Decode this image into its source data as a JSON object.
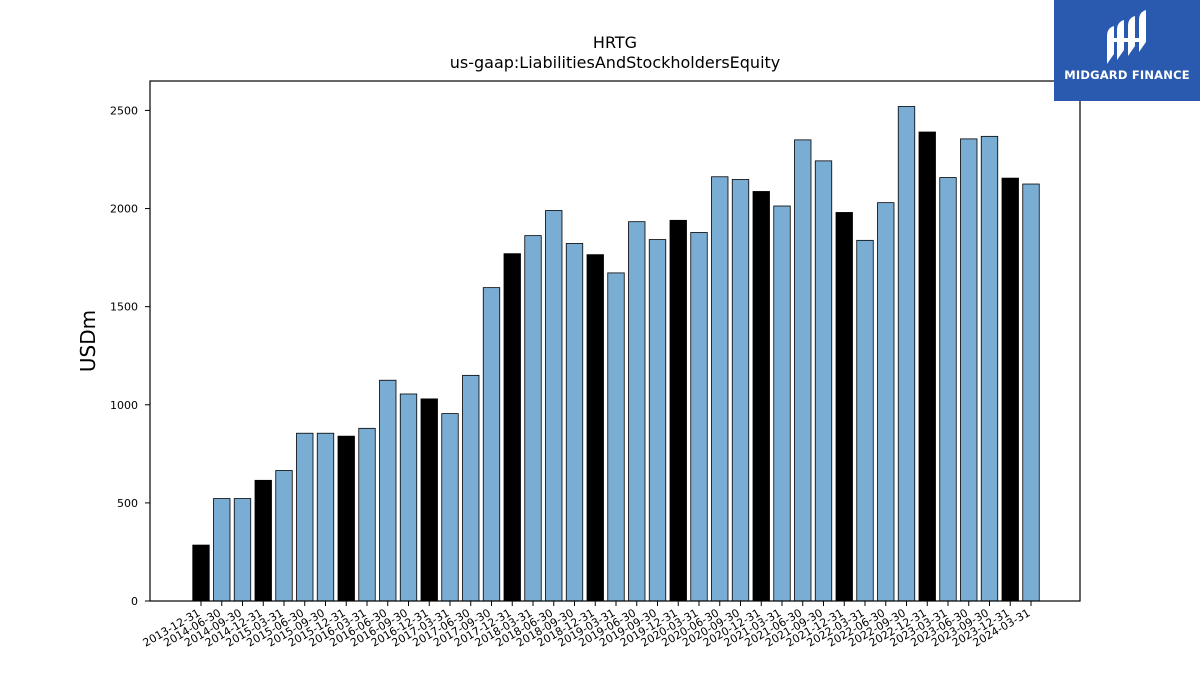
{
  "brand": {
    "name": "MIDGARD FINANCE",
    "bg_color": "#2a5ab0"
  },
  "chart_data": {
    "type": "bar",
    "title": "HRTG",
    "subtitle": "us-gaap:LiabilitiesAndStockholdersEquity",
    "xlabel": "",
    "ylabel": "USDm",
    "ylim": [
      0,
      2650
    ],
    "yticks": [
      0,
      500,
      1000,
      1500,
      2000,
      2500
    ],
    "grid": false,
    "colors": {
      "quarter": "#7aadd4",
      "year_end": "#000000",
      "edge": "#000000"
    },
    "categories": [
      "2013-12-31",
      "2014-06-30",
      "2014-09-30",
      "2014-12-31",
      "2015-03-31",
      "2015-06-30",
      "2015-09-30",
      "2015-12-31",
      "2016-03-31",
      "2016-06-30",
      "2016-09-30",
      "2016-12-31",
      "2017-03-31",
      "2017-06-30",
      "2017-09-30",
      "2017-12-31",
      "2018-03-31",
      "2018-06-30",
      "2018-09-30",
      "2018-12-31",
      "2019-03-31",
      "2019-06-30",
      "2019-09-30",
      "2019-12-31",
      "2020-03-31",
      "2020-06-30",
      "2020-09-30",
      "2020-12-31",
      "2021-03-31",
      "2021-06-30",
      "2021-09-30",
      "2021-12-31",
      "2022-03-31",
      "2022-06-30",
      "2022-09-30",
      "2022-12-31",
      "2023-03-31",
      "2023-06-30",
      "2023-09-30",
      "2023-12-31",
      "2024-03-31"
    ],
    "values": [
      285,
      522,
      522,
      615,
      665,
      855,
      855,
      840,
      880,
      1125,
      1055,
      1030,
      955,
      1150,
      1597,
      1770,
      1862,
      1990,
      1822,
      1765,
      1672,
      1933,
      1842,
      1940,
      1878,
      2162,
      2148,
      2087,
      2013,
      2350,
      2243,
      1980,
      1838,
      2030,
      2520,
      2390,
      2158,
      2355,
      2368,
      2155,
      2125
    ]
  }
}
